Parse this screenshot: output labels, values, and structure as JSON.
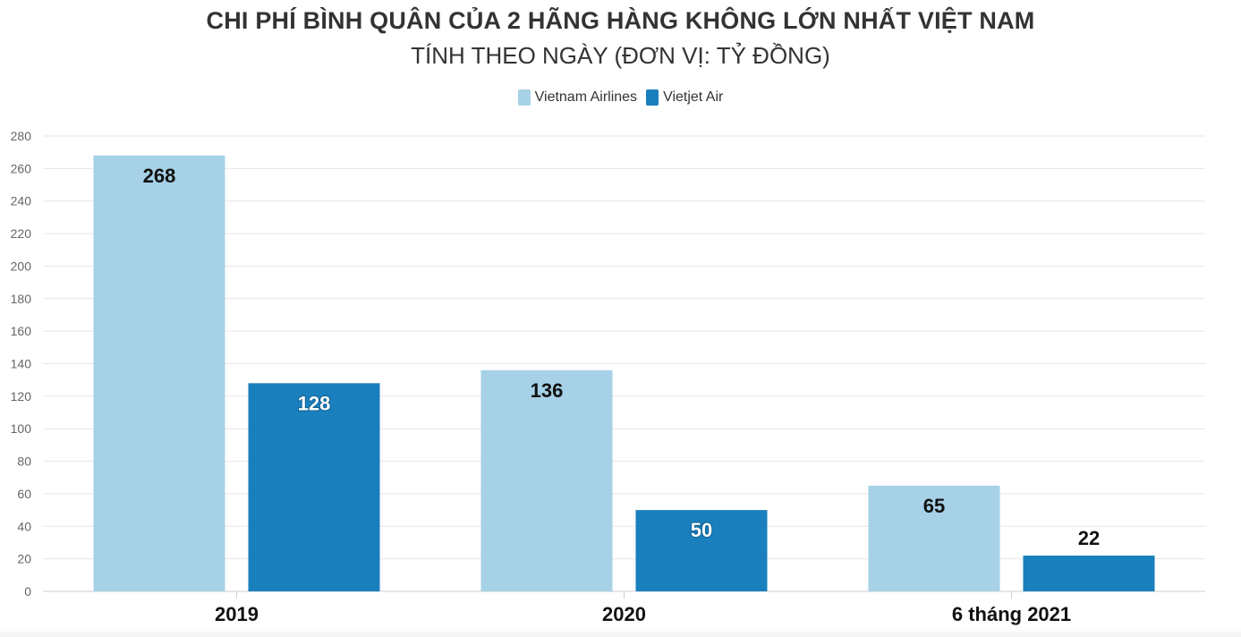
{
  "chart_data": {
    "type": "bar",
    "title": "CHI PHÍ BÌNH QUÂN CỦA 2 HÃNG HÀNG KHÔNG LỚN NHẤT VIỆT NAM",
    "subtitle": "TÍNH THEO NGÀY (ĐƠN VỊ: TỶ ĐỒNG)",
    "categories": [
      "2019",
      "2020",
      "6 tháng 2021"
    ],
    "series": [
      {
        "name": "Vietnam Airlines",
        "values": [
          268,
          136,
          65
        ],
        "color": "#a6d1e6"
      },
      {
        "name": "Vietjet Air",
        "values": [
          128,
          50,
          22
        ],
        "color": "#1a7fbd"
      }
    ],
    "ylim": [
      0,
      280
    ],
    "yticks": [
      0,
      20,
      40,
      60,
      80,
      100,
      120,
      140,
      160,
      180,
      200,
      220,
      240,
      260,
      280
    ],
    "grid": true,
    "legend_position": "top-center",
    "data_labels": true
  }
}
